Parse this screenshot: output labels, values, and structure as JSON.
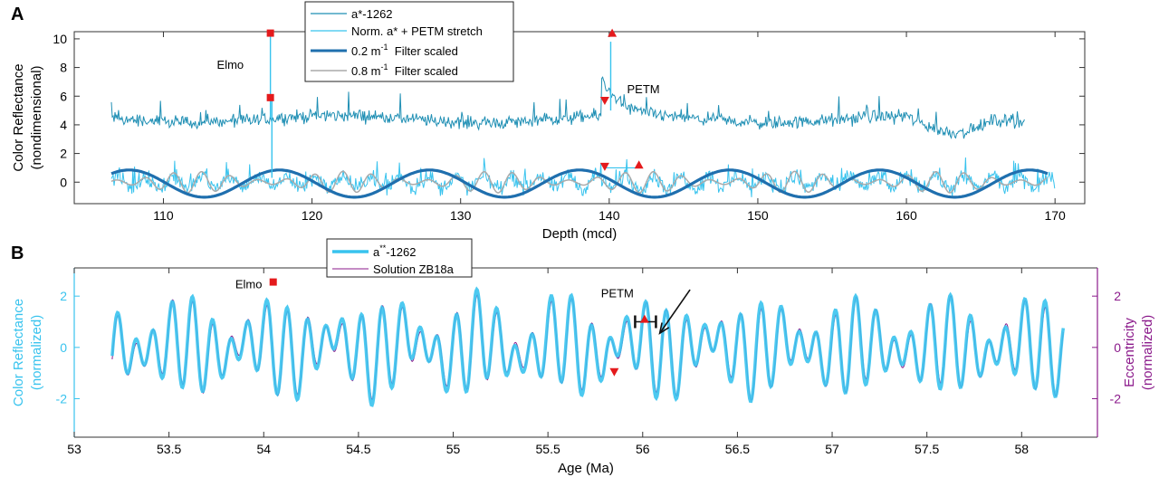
{
  "chart_data": [
    {
      "panel_label": "A",
      "type": "line",
      "xlabel": "Depth (mcd)",
      "ylabel_lines": [
        "Color Reflectance",
        "(nondimensional)"
      ],
      "xlim": [
        104,
        172
      ],
      "ylim": [
        -1.5,
        10.5
      ],
      "xticks": [
        110,
        120,
        130,
        140,
        150,
        160,
        170
      ],
      "yticks": [
        0,
        2,
        4,
        6,
        8,
        10
      ],
      "legend_position": "top-center",
      "series": [
        {
          "name": "a*-1262",
          "color": "#1f8fb4",
          "x_range": [
            106.5,
            168.0
          ],
          "baseline": 4.4
        },
        {
          "name": "Norm. a* + PETM stretch",
          "color": "#38c3ee",
          "x_range": [
            106.5,
            170.0
          ],
          "baseline": 0.0
        },
        {
          "name": "0.2 m",
          "name_super": "-1",
          "name_suffix": "  Filter scaled",
          "color": "#1f6fae",
          "x_range": [
            106.5,
            169.5
          ],
          "amplitude": 0.95,
          "period": 10.1,
          "phase_ref": 117.8
        },
        {
          "name": "0.8 m",
          "name_super": "-1",
          "name_suffix": "  Filter scaled",
          "color": "#aaaaaa",
          "x_range": [
            106.5,
            169.5
          ],
          "amplitude": 0.75,
          "period": 1.9
        }
      ],
      "markers": [
        {
          "kind": "square",
          "x": 117.2,
          "y": 10.4
        },
        {
          "kind": "square",
          "x": 117.2,
          "y": 5.9
        },
        {
          "kind": "triangle-up",
          "x": 140.2,
          "y": 10.4
        },
        {
          "kind": "triangle-down",
          "x": 139.7,
          "y": 5.7
        },
        {
          "kind": "triangle-down",
          "x": 139.7,
          "y": 1.1
        },
        {
          "kind": "triangle-up",
          "x": 142.0,
          "y": 1.2
        }
      ],
      "spikes": [
        {
          "x": 117.2,
          "y_top": 10.4,
          "y_base": 4.5
        },
        {
          "x": 117.3,
          "y_top": 5.9,
          "y_base": 0.3
        },
        {
          "x": 140.1,
          "y_top": 9.8,
          "y_base": 5.0
        }
      ],
      "annotations": [
        {
          "text": "Elmo",
          "x": 113.6,
          "y": 7.9
        },
        {
          "text": "PETM",
          "x": 141.2,
          "y": 6.2
        }
      ]
    },
    {
      "panel_label": "B",
      "type": "line",
      "xlabel": "Age (Ma)",
      "ylabel_lines": [
        "Color Reflectance",
        "(normalized)"
      ],
      "ylabel_right_lines": [
        "Eccentricity",
        "(normalized)"
      ],
      "xlim": [
        53,
        58.4
      ],
      "ylim": [
        -3.5,
        3.1
      ],
      "xticks": [
        53,
        53.5,
        54,
        54.5,
        55,
        55.5,
        56,
        56.5,
        57,
        57.5,
        58
      ],
      "xtick_labels": [
        "53",
        "53.5",
        "54",
        "54.5",
        "55",
        "55.5",
        "56",
        "56.5",
        "57",
        "57.5",
        "58"
      ],
      "yticks_left": [
        -2,
        0,
        2
      ],
      "yticks_right": [
        -2,
        0,
        2
      ],
      "legend_position": "top-left",
      "series": [
        {
          "name": "a",
          "name_super": "**",
          "name_suffix": "-1262",
          "color": "#38c3ee",
          "x_range": [
            53.2,
            58.22
          ]
        },
        {
          "name": "Solution ZB18a",
          "color": "#8b1a8b",
          "x_range": [
            53.2,
            58.22
          ]
        }
      ],
      "markers": [
        {
          "kind": "square",
          "x": 54.05,
          "y": 2.55
        },
        {
          "kind": "triangle-up",
          "x": 56.01,
          "y": 1.1
        },
        {
          "kind": "triangle-down",
          "x": 55.85,
          "y": -0.95
        }
      ],
      "error_bar": {
        "x_from": 55.96,
        "x_to": 56.07,
        "y": 1.0
      },
      "arrow": {
        "x_from": 56.25,
        "y_from": 2.25,
        "x_to": 56.09,
        "y_to": 0.55
      },
      "annotations": [
        {
          "text": "Elmo",
          "x": 53.85,
          "y": 2.3
        },
        {
          "text": "PETM",
          "x": 55.78,
          "y": 1.95
        }
      ]
    }
  ]
}
